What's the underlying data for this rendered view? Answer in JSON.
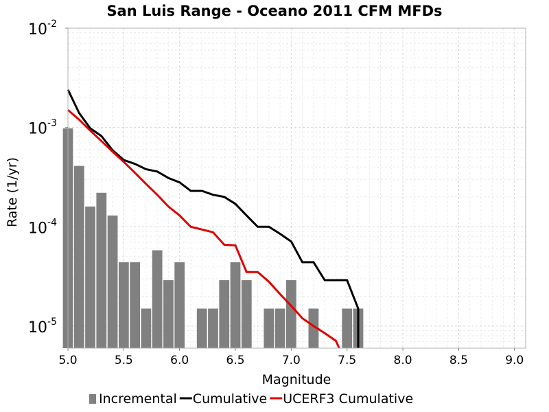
{
  "chart_data": {
    "type": "bar",
    "title": "San Luis Range - Oceano 2011 CFM MFDs",
    "xlabel": "Magnitude",
    "ylabel": "Rate (1/yr)",
    "xlim": [
      5.0,
      9.1
    ],
    "ylim": [
      6e-06,
      0.01
    ],
    "yscale": "log",
    "grid": true,
    "legend_position": "bottom",
    "x_ticks": [
      "5.0",
      "5.5",
      "6.0",
      "6.5",
      "7.0",
      "7.5",
      "8.0",
      "8.5",
      "9.0"
    ],
    "y_ticks": [
      {
        "base": "10",
        "exp": "-5",
        "value": 1e-05
      },
      {
        "base": "10",
        "exp": "-4",
        "value": 0.0001
      },
      {
        "base": "10",
        "exp": "-3",
        "value": 0.001
      },
      {
        "base": "10",
        "exp": "-2",
        "value": 0.01
      }
    ],
    "series": [
      {
        "name": "Incremental",
        "kind": "bar",
        "color": "#808080",
        "x": [
          5.0,
          5.1,
          5.2,
          5.3,
          5.4,
          5.5,
          5.6,
          5.7,
          5.8,
          5.9,
          6.0,
          6.2,
          6.3,
          6.4,
          6.5,
          6.6,
          6.8,
          6.9,
          7.0,
          7.2,
          7.5,
          7.6
        ],
        "values": [
          0.00098,
          0.00041,
          0.00016,
          0.00022,
          0.00013,
          4.4e-05,
          4.4e-05,
          1.5e-05,
          5.8e-05,
          2.9e-05,
          4.4e-05,
          1.5e-05,
          1.5e-05,
          2.9e-05,
          4.4e-05,
          2.9e-05,
          1.5e-05,
          1.5e-05,
          2.9e-05,
          1.5e-05,
          1.5e-05,
          1.5e-05
        ]
      },
      {
        "name": "Cumulative",
        "kind": "line",
        "color": "#000000",
        "x": [
          5.0,
          5.1,
          5.2,
          5.3,
          5.4,
          5.5,
          5.6,
          5.7,
          5.8,
          5.9,
          6.0,
          6.1,
          6.2,
          6.3,
          6.4,
          6.5,
          6.6,
          6.7,
          6.8,
          6.9,
          7.0,
          7.1,
          7.2,
          7.3,
          7.4,
          7.5,
          7.6,
          7.6
        ],
        "values": [
          0.0024,
          0.0014,
          0.00098,
          0.00082,
          0.00059,
          0.00047,
          0.00043,
          0.00038,
          0.00036,
          0.00031,
          0.00028,
          0.00023,
          0.00023,
          0.00021,
          0.0002,
          0.00017,
          0.00013,
          0.0001,
          0.0001,
          8.5e-05,
          7.1e-05,
          4.4e-05,
          4.4e-05,
          2.9e-05,
          2.9e-05,
          2.9e-05,
          1.5e-05,
          6e-06
        ]
      },
      {
        "name": "UCERF3 Cumulative",
        "kind": "line",
        "color": "#e00000",
        "x": [
          5.0,
          5.1,
          5.2,
          5.3,
          5.4,
          5.5,
          5.6,
          5.7,
          5.8,
          5.9,
          6.0,
          6.1,
          6.2,
          6.3,
          6.4,
          6.5,
          6.6,
          6.7,
          6.8,
          6.9,
          7.0,
          7.1,
          7.2,
          7.3,
          7.4,
          7.43
        ],
        "values": [
          0.0015,
          0.0012,
          0.00093,
          0.00073,
          0.00057,
          0.00045,
          0.00035,
          0.00027,
          0.00021,
          0.00016,
          0.00013,
          0.0001,
          9.4e-05,
          8.8e-05,
          6.6e-05,
          6.5e-05,
          3.5e-05,
          3.5e-05,
          2.8e-05,
          2.1e-05,
          1.6e-05,
          1.2e-05,
          1e-05,
          8.5e-06,
          7.1e-06,
          6e-06
        ]
      }
    ]
  }
}
